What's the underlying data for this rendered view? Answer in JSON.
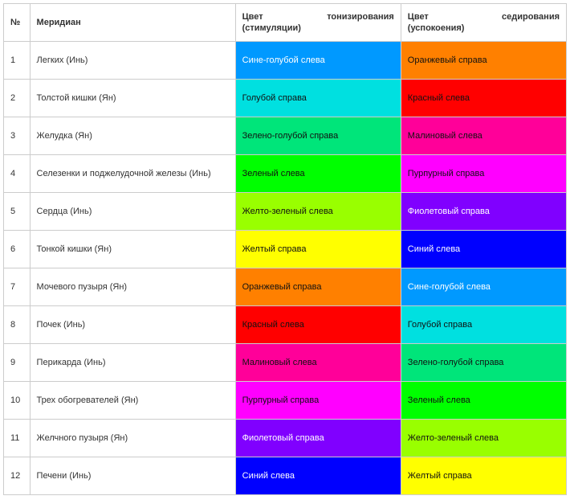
{
  "columns": {
    "num": "№",
    "meridian": "Меридиан",
    "ton_line1a": "Цвет",
    "ton_line1b": "тонизирования",
    "ton_line2": "(стимуляции)",
    "sed_line1a": "Цвет",
    "sed_line1b": "седирования",
    "sed_line2": "(успокоения)"
  },
  "rows": [
    {
      "num": "1",
      "meridian": "Легких (Инь)",
      "ton_label": "Сине-голубой слева",
      "ton_bg": "#0099ff",
      "ton_fg": "#ffffff",
      "sed_label": "Оранжевый справа",
      "sed_bg": "#ff8000",
      "sed_fg": "#111111"
    },
    {
      "num": "2",
      "meridian": "Толстой кишки (Ян)",
      "ton_label": "Голубой справа",
      "ton_bg": "#00e0e0",
      "ton_fg": "#111111",
      "sed_label": "Красный слева",
      "sed_bg": "#ff0000",
      "sed_fg": "#111111"
    },
    {
      "num": "3",
      "meridian": "Желудка (Ян)",
      "ton_label": "Зелено-голубой справа",
      "ton_bg": "#00e57a",
      "ton_fg": "#111111",
      "sed_label": "Малиновый слева",
      "sed_bg": "#ff0099",
      "sed_fg": "#111111"
    },
    {
      "num": "4",
      "meridian": "Селезенки и поджелудочной железы (Инь)",
      "ton_label": "Зеленый слева",
      "ton_bg": "#00ff00",
      "ton_fg": "#111111",
      "sed_label": "Пурпурный справа",
      "sed_bg": "#ff00ff",
      "sed_fg": "#111111"
    },
    {
      "num": "5",
      "meridian": "Сердца (Инь)",
      "ton_label": "Желто-зеленый слева",
      "ton_bg": "#99ff00",
      "ton_fg": "#111111",
      "sed_label": "Фиолетовый справа",
      "sed_bg": "#8000ff",
      "sed_fg": "#ffffff"
    },
    {
      "num": "6",
      "meridian": "Тонкой кишки (Ян)",
      "ton_label": "Желтый справа",
      "ton_bg": "#ffff00",
      "ton_fg": "#111111",
      "sed_label": "Синий слева",
      "sed_bg": "#0000ff",
      "sed_fg": "#ffffff"
    },
    {
      "num": "7",
      "meridian": "Мочевого пузыря (Ян)",
      "ton_label": "Оранжевый справа",
      "ton_bg": "#ff8000",
      "ton_fg": "#111111",
      "sed_label": "Сине-голубой слева",
      "sed_bg": "#0099ff",
      "sed_fg": "#ffffff"
    },
    {
      "num": "8",
      "meridian": "Почек (Инь)",
      "ton_label": "Красный слева",
      "ton_bg": "#ff0000",
      "ton_fg": "#111111",
      "sed_label": "Голубой справа",
      "sed_bg": "#00e0e0",
      "sed_fg": "#111111"
    },
    {
      "num": "9",
      "meridian": "Перикарда (Инь)",
      "ton_label": "Малиновый слева",
      "ton_bg": "#ff0099",
      "ton_fg": "#111111",
      "sed_label": "Зелено-голубой справа",
      "sed_bg": "#00e57a",
      "sed_fg": "#111111"
    },
    {
      "num": "10",
      "meridian": "Трех обогревателей (Ян)",
      "ton_label": "Пурпурный справа",
      "ton_bg": "#ff00ff",
      "ton_fg": "#111111",
      "sed_label": "Зеленый слева",
      "sed_bg": "#00ff00",
      "sed_fg": "#111111"
    },
    {
      "num": "11",
      "meridian": "Желчного пузыря (Ян)",
      "ton_label": "Фиолетовый справа",
      "ton_bg": "#8000ff",
      "ton_fg": "#ffffff",
      "sed_label": "Желто-зеленый слева",
      "sed_bg": "#99ff00",
      "sed_fg": "#111111"
    },
    {
      "num": "12",
      "meridian": "Печени (Инь)",
      "ton_label": "Синий слева",
      "ton_bg": "#0000ff",
      "ton_fg": "#ffffff",
      "sed_label": "Желтый справа",
      "sed_bg": "#ffff00",
      "sed_fg": "#111111"
    }
  ]
}
